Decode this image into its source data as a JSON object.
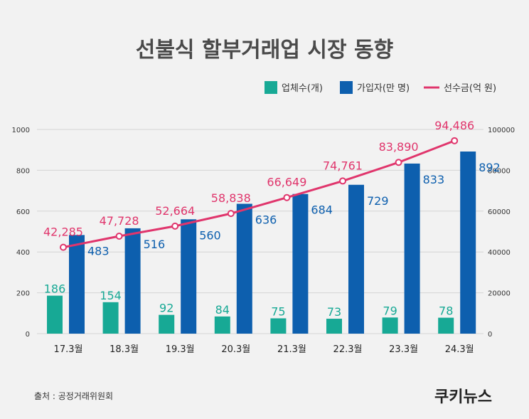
{
  "chart_data": {
    "type": "bar",
    "title": "선불식 할부거래업 시장 동향",
    "categories": [
      "17.3월",
      "18.3월",
      "19.3월",
      "20.3월",
      "21.3월",
      "22.3월",
      "23.3월",
      "24.3월"
    ],
    "series": [
      {
        "name": "업체수(개)",
        "kind": "bar",
        "axis": "left",
        "color": "#17a995",
        "values": [
          186,
          154,
          92,
          84,
          75,
          73,
          79,
          78
        ],
        "labels": [
          "186",
          "154",
          "92",
          "84",
          "75",
          "73",
          "79",
          "78"
        ]
      },
      {
        "name": "가입자(만 명)",
        "kind": "bar",
        "axis": "left",
        "color": "#0d5fae",
        "values": [
          483,
          516,
          560,
          636,
          684,
          729,
          833,
          892
        ],
        "labels": [
          "483",
          "516",
          "560",
          "636",
          "684",
          "729",
          "833",
          "892"
        ]
      },
      {
        "name": "선수금(억 원)",
        "kind": "line",
        "axis": "right",
        "color": "#e0356c",
        "values": [
          42285,
          47728,
          52664,
          58838,
          66649,
          74761,
          83890,
          94486
        ],
        "labels": [
          "42,285",
          "47,728",
          "52,664",
          "58,838",
          "66,649",
          "74,761",
          "83,890",
          "94,486"
        ]
      }
    ],
    "ylim": [
      0,
      1000
    ],
    "y2lim": [
      0,
      100000
    ],
    "yticks": [
      "0",
      "200",
      "400",
      "600",
      "800",
      "1000"
    ],
    "y2ticks": [
      "0",
      "20000",
      "40000",
      "60000",
      "80000",
      "100000"
    ],
    "grid": true,
    "legend_position": "top-right"
  },
  "footer": {
    "source": "출처 : 공정거래위원회",
    "logo": "쿠키뉴스"
  }
}
